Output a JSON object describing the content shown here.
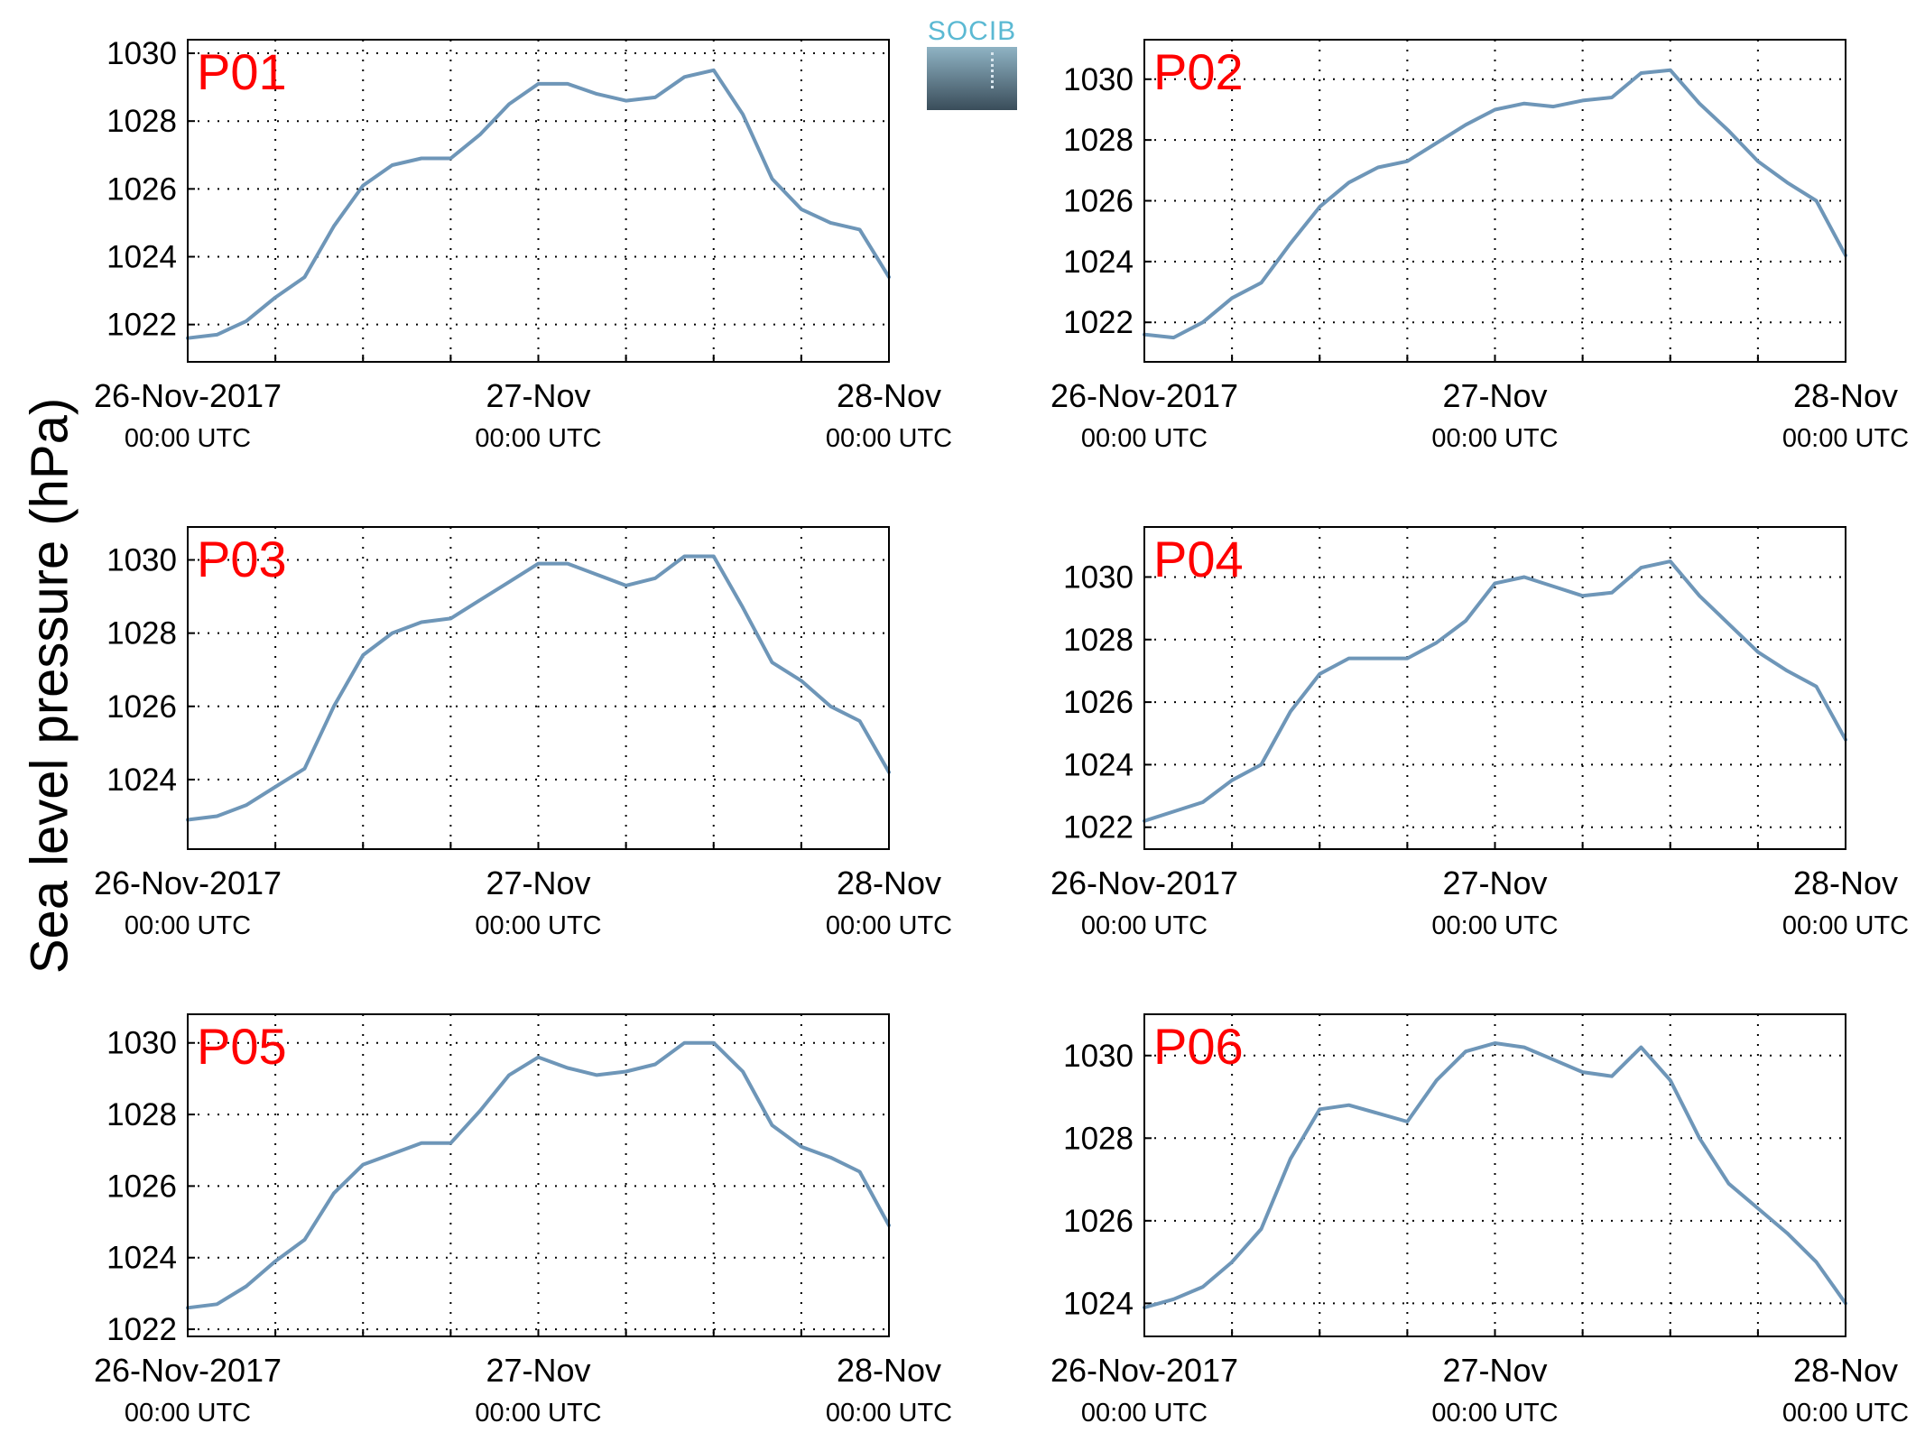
{
  "ylabel": "Sea level pressure (hPa)",
  "logo": {
    "text": "SOCIB"
  },
  "colors": {
    "line": "#6e96b8",
    "panel_label": "#ff0000",
    "grid": "#000000"
  },
  "chart_data": [
    {
      "type": "line",
      "title": "P01",
      "xticks": [
        "26-Nov-2017",
        "27-Nov",
        "28-Nov"
      ],
      "xticks_sub": [
        "00:00 UTC",
        "00:00 UTC",
        "00:00 UTC"
      ],
      "xlim": [
        "2017-11-26 00:00",
        "2017-11-28 00:00"
      ],
      "ylim": [
        1020.9,
        1030.4
      ],
      "yticks": [
        1022,
        1024,
        1026,
        1028,
        1030
      ],
      "grid": true,
      "x": [
        "2017-11-26 00:00",
        "2017-11-26 02:00",
        "2017-11-26 04:00",
        "2017-11-26 06:00",
        "2017-11-26 08:00",
        "2017-11-26 10:00",
        "2017-11-26 12:00",
        "2017-11-26 14:00",
        "2017-11-26 16:00",
        "2017-11-26 18:00",
        "2017-11-26 20:00",
        "2017-11-26 22:00",
        "2017-11-27 00:00",
        "2017-11-27 02:00",
        "2017-11-27 04:00",
        "2017-11-27 06:00",
        "2017-11-27 08:00",
        "2017-11-27 10:00",
        "2017-11-27 12:00",
        "2017-11-27 14:00",
        "2017-11-27 16:00",
        "2017-11-27 18:00",
        "2017-11-27 20:00",
        "2017-11-27 22:00",
        "2017-11-28 00:00"
      ],
      "y": [
        1021.6,
        1021.7,
        1022.1,
        1022.8,
        1023.4,
        1024.9,
        1026.1,
        1026.7,
        1026.9,
        1026.9,
        1027.6,
        1028.5,
        1029.1,
        1029.1,
        1028.8,
        1028.6,
        1028.7,
        1029.3,
        1029.5,
        1028.2,
        1026.3,
        1025.4,
        1025.0,
        1024.8,
        1023.4
      ]
    },
    {
      "type": "line",
      "title": "P02",
      "xticks": [
        "26-Nov-2017",
        "27-Nov",
        "28-Nov"
      ],
      "xticks_sub": [
        "00:00 UTC",
        "00:00 UTC",
        "00:00 UTC"
      ],
      "xlim": [
        "2017-11-26 00:00",
        "2017-11-28 00:00"
      ],
      "ylim": [
        1020.7,
        1031.3
      ],
      "yticks": [
        1022,
        1024,
        1026,
        1028,
        1030
      ],
      "grid": true,
      "x": [
        "2017-11-26 00:00",
        "2017-11-26 02:00",
        "2017-11-26 04:00",
        "2017-11-26 06:00",
        "2017-11-26 08:00",
        "2017-11-26 10:00",
        "2017-11-26 12:00",
        "2017-11-26 14:00",
        "2017-11-26 16:00",
        "2017-11-26 18:00",
        "2017-11-26 20:00",
        "2017-11-26 22:00",
        "2017-11-27 00:00",
        "2017-11-27 02:00",
        "2017-11-27 04:00",
        "2017-11-27 06:00",
        "2017-11-27 08:00",
        "2017-11-27 10:00",
        "2017-11-27 12:00",
        "2017-11-27 14:00",
        "2017-11-27 16:00",
        "2017-11-27 18:00",
        "2017-11-27 20:00",
        "2017-11-27 22:00",
        "2017-11-28 00:00"
      ],
      "y": [
        1021.6,
        1021.5,
        1022.0,
        1022.8,
        1023.3,
        1024.6,
        1025.8,
        1026.6,
        1027.1,
        1027.3,
        1027.9,
        1028.5,
        1029.0,
        1029.2,
        1029.1,
        1029.3,
        1029.4,
        1030.2,
        1030.3,
        1029.2,
        1028.3,
        1027.3,
        1026.6,
        1026.0,
        1024.2
      ]
    },
    {
      "type": "line",
      "title": "P03",
      "xticks": [
        "26-Nov-2017",
        "27-Nov",
        "28-Nov"
      ],
      "xticks_sub": [
        "00:00 UTC",
        "00:00 UTC",
        "00:00 UTC"
      ],
      "xlim": [
        "2017-11-26 00:00",
        "2017-11-28 00:00"
      ],
      "ylim": [
        1022.1,
        1030.9
      ],
      "yticks": [
        1024,
        1026,
        1028,
        1030
      ],
      "grid": true,
      "x": [
        "2017-11-26 00:00",
        "2017-11-26 02:00",
        "2017-11-26 04:00",
        "2017-11-26 06:00",
        "2017-11-26 08:00",
        "2017-11-26 10:00",
        "2017-11-26 12:00",
        "2017-11-26 14:00",
        "2017-11-26 16:00",
        "2017-11-26 18:00",
        "2017-11-26 20:00",
        "2017-11-26 22:00",
        "2017-11-27 00:00",
        "2017-11-27 02:00",
        "2017-11-27 04:00",
        "2017-11-27 06:00",
        "2017-11-27 08:00",
        "2017-11-27 10:00",
        "2017-11-27 12:00",
        "2017-11-27 14:00",
        "2017-11-27 16:00",
        "2017-11-27 18:00",
        "2017-11-27 20:00",
        "2017-11-27 22:00",
        "2017-11-28 00:00"
      ],
      "y": [
        1022.9,
        1023.0,
        1023.3,
        1023.8,
        1024.3,
        1026.0,
        1027.4,
        1028.0,
        1028.3,
        1028.4,
        1028.9,
        1029.4,
        1029.9,
        1029.9,
        1029.6,
        1029.3,
        1029.5,
        1030.1,
        1030.1,
        1028.7,
        1027.2,
        1026.7,
        1026.0,
        1025.6,
        1024.2
      ]
    },
    {
      "type": "line",
      "title": "P04",
      "xticks": [
        "26-Nov-2017",
        "27-Nov",
        "28-Nov"
      ],
      "xticks_sub": [
        "00:00 UTC",
        "00:00 UTC",
        "00:00 UTC"
      ],
      "xlim": [
        "2017-11-26 00:00",
        "2017-11-28 00:00"
      ],
      "ylim": [
        1021.3,
        1031.6
      ],
      "yticks": [
        1022,
        1024,
        1026,
        1028,
        1030
      ],
      "grid": true,
      "x": [
        "2017-11-26 00:00",
        "2017-11-26 02:00",
        "2017-11-26 04:00",
        "2017-11-26 06:00",
        "2017-11-26 08:00",
        "2017-11-26 10:00",
        "2017-11-26 12:00",
        "2017-11-26 14:00",
        "2017-11-26 16:00",
        "2017-11-26 18:00",
        "2017-11-26 20:00",
        "2017-11-26 22:00",
        "2017-11-27 00:00",
        "2017-11-27 02:00",
        "2017-11-27 04:00",
        "2017-11-27 06:00",
        "2017-11-27 08:00",
        "2017-11-27 10:00",
        "2017-11-27 12:00",
        "2017-11-27 14:00",
        "2017-11-27 16:00",
        "2017-11-27 18:00",
        "2017-11-27 20:00",
        "2017-11-27 22:00",
        "2017-11-28 00:00"
      ],
      "y": [
        1022.2,
        1022.5,
        1022.8,
        1023.5,
        1024.0,
        1025.7,
        1026.9,
        1027.4,
        1027.4,
        1027.4,
        1027.9,
        1028.6,
        1029.8,
        1030.0,
        1029.7,
        1029.4,
        1029.5,
        1030.3,
        1030.5,
        1029.4,
        1028.5,
        1027.6,
        1027.0,
        1026.5,
        1024.8
      ]
    },
    {
      "type": "line",
      "title": "P05",
      "xticks": [
        "26-Nov-2017",
        "27-Nov",
        "28-Nov"
      ],
      "xticks_sub": [
        "00:00 UTC",
        "00:00 UTC",
        "00:00 UTC"
      ],
      "xlim": [
        "2017-11-26 00:00",
        "2017-11-28 00:00"
      ],
      "ylim": [
        1021.8,
        1030.8
      ],
      "yticks": [
        1022,
        1024,
        1026,
        1028,
        1030
      ],
      "grid": true,
      "x": [
        "2017-11-26 00:00",
        "2017-11-26 02:00",
        "2017-11-26 04:00",
        "2017-11-26 06:00",
        "2017-11-26 08:00",
        "2017-11-26 10:00",
        "2017-11-26 12:00",
        "2017-11-26 14:00",
        "2017-11-26 16:00",
        "2017-11-26 18:00",
        "2017-11-26 20:00",
        "2017-11-26 22:00",
        "2017-11-27 00:00",
        "2017-11-27 02:00",
        "2017-11-27 04:00",
        "2017-11-27 06:00",
        "2017-11-27 08:00",
        "2017-11-27 10:00",
        "2017-11-27 12:00",
        "2017-11-27 14:00",
        "2017-11-27 16:00",
        "2017-11-27 18:00",
        "2017-11-27 20:00",
        "2017-11-27 22:00",
        "2017-11-28 00:00"
      ],
      "y": [
        1022.6,
        1022.7,
        1023.2,
        1023.9,
        1024.5,
        1025.8,
        1026.6,
        1026.9,
        1027.2,
        1027.2,
        1028.1,
        1029.1,
        1029.6,
        1029.3,
        1029.1,
        1029.2,
        1029.4,
        1030.0,
        1030.0,
        1029.2,
        1027.7,
        1027.1,
        1026.8,
        1026.4,
        1024.9
      ]
    },
    {
      "type": "line",
      "title": "P06",
      "xticks": [
        "26-Nov-2017",
        "27-Nov",
        "28-Nov"
      ],
      "xticks_sub": [
        "00:00 UTC",
        "00:00 UTC",
        "00:00 UTC"
      ],
      "xlim": [
        "2017-11-26 00:00",
        "2017-11-28 00:00"
      ],
      "ylim": [
        1023.2,
        1031.0
      ],
      "yticks": [
        1024,
        1026,
        1028,
        1030
      ],
      "grid": true,
      "x": [
        "2017-11-26 00:00",
        "2017-11-26 02:00",
        "2017-11-26 04:00",
        "2017-11-26 06:00",
        "2017-11-26 08:00",
        "2017-11-26 10:00",
        "2017-11-26 12:00",
        "2017-11-26 14:00",
        "2017-11-26 16:00",
        "2017-11-26 18:00",
        "2017-11-26 20:00",
        "2017-11-26 22:00",
        "2017-11-27 00:00",
        "2017-11-27 02:00",
        "2017-11-27 04:00",
        "2017-11-27 06:00",
        "2017-11-27 08:00",
        "2017-11-27 10:00",
        "2017-11-27 12:00",
        "2017-11-27 14:00",
        "2017-11-27 16:00",
        "2017-11-27 18:00",
        "2017-11-27 20:00",
        "2017-11-27 22:00",
        "2017-11-28 00:00"
      ],
      "y": [
        1023.9,
        1024.1,
        1024.4,
        1025.0,
        1025.8,
        1027.5,
        1028.7,
        1028.8,
        1028.6,
        1028.4,
        1029.4,
        1030.1,
        1030.3,
        1030.2,
        1029.9,
        1029.6,
        1029.5,
        1030.2,
        1029.4,
        1028.0,
        1026.9,
        1026.3,
        1025.7,
        1025.0,
        1024.0
      ]
    }
  ]
}
